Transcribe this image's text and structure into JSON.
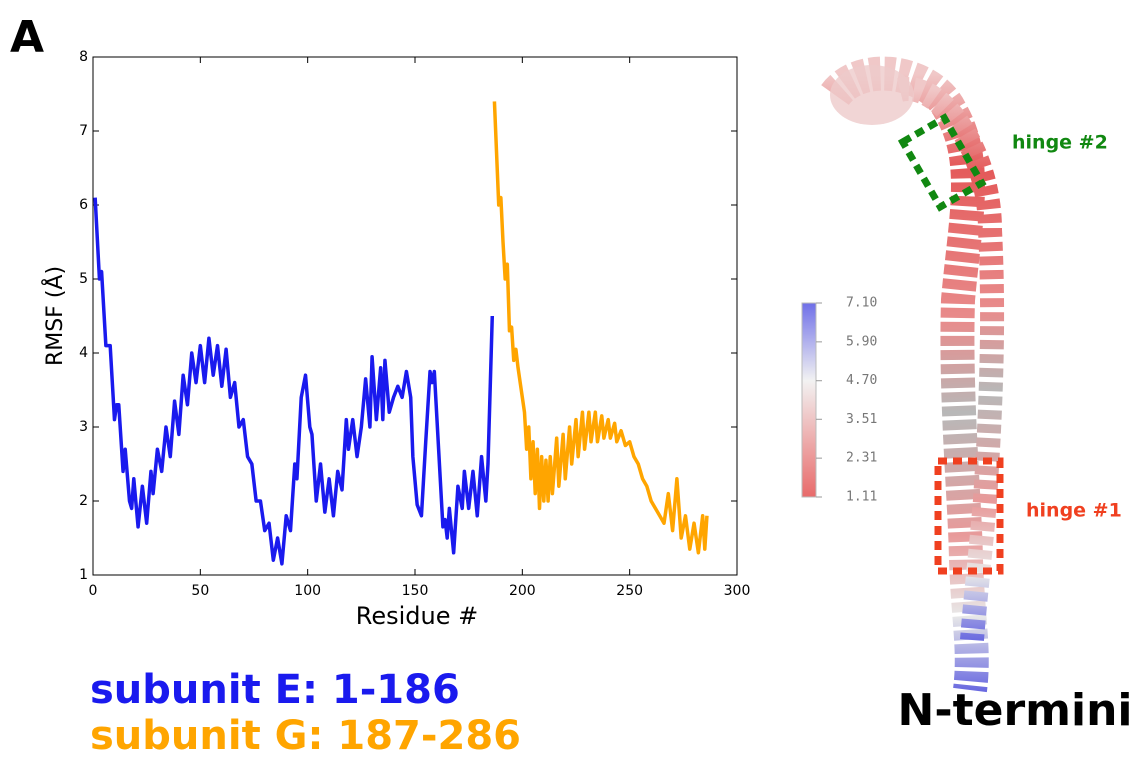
{
  "panel_label": "A",
  "chart_data": {
    "type": "line",
    "xlabel": "Residue #",
    "ylabel": "RMSF (Å)",
    "xlim": [
      0,
      300
    ],
    "ylim": [
      1,
      8
    ],
    "xticks": [
      0,
      50,
      100,
      150,
      200,
      250,
      300
    ],
    "yticks": [
      1,
      2,
      3,
      4,
      5,
      6,
      7,
      8
    ],
    "series": [
      {
        "name": "subunit E: 1-186",
        "color": "#1a1aee",
        "x": [
          1,
          3,
          4,
          6,
          8,
          10,
          11,
          12,
          14,
          15,
          17,
          18,
          19,
          21,
          23,
          25,
          27,
          28,
          30,
          32,
          34,
          36,
          38,
          40,
          42,
          44,
          46,
          48,
          50,
          52,
          54,
          56,
          58,
          60,
          62,
          64,
          66,
          68,
          70,
          72,
          74,
          76,
          78,
          80,
          82,
          84,
          86,
          88,
          90,
          92,
          94,
          95,
          97,
          99,
          101,
          102,
          104,
          106,
          108,
          110,
          112,
          114,
          116,
          118,
          119,
          121,
          123,
          125,
          127,
          129,
          130,
          132,
          134,
          135,
          136,
          138,
          140,
          142,
          144,
          146,
          148,
          149,
          151,
          153,
          155,
          157,
          158,
          159,
          161,
          163,
          164,
          165,
          166,
          168,
          170,
          172,
          173,
          175,
          177,
          179,
          181,
          183,
          184,
          186
        ],
        "values": [
          6.1,
          5.0,
          5.1,
          4.1,
          4.1,
          3.1,
          3.3,
          3.3,
          2.4,
          2.7,
          2.0,
          1.9,
          2.3,
          1.65,
          2.2,
          1.7,
          2.4,
          2.1,
          2.7,
          2.4,
          3.0,
          2.6,
          3.35,
          2.9,
          3.7,
          3.3,
          4.0,
          3.6,
          4.1,
          3.6,
          4.2,
          3.7,
          4.1,
          3.55,
          4.05,
          3.4,
          3.6,
          3.0,
          3.1,
          2.6,
          2.5,
          2.0,
          2.0,
          1.6,
          1.7,
          1.2,
          1.5,
          1.15,
          1.8,
          1.6,
          2.5,
          2.3,
          3.4,
          3.7,
          3.0,
          2.9,
          2.0,
          2.5,
          1.85,
          2.3,
          1.8,
          2.4,
          2.15,
          3.1,
          2.7,
          3.1,
          2.6,
          3.0,
          3.65,
          3.0,
          3.95,
          3.1,
          3.8,
          3.1,
          3.9,
          3.2,
          3.4,
          3.55,
          3.4,
          3.75,
          3.4,
          2.6,
          1.95,
          1.8,
          2.8,
          3.75,
          3.6,
          3.75,
          2.7,
          1.65,
          1.75,
          1.5,
          1.9,
          1.3,
          2.2,
          1.9,
          2.4,
          1.9,
          2.4,
          1.8,
          2.6,
          2.0,
          2.5,
          4.5
        ]
      },
      {
        "name": "subunit G: 187-286",
        "color": "#ffa500",
        "x": [
          187,
          189,
          190,
          191,
          192,
          193,
          194,
          195,
          196,
          197,
          198,
          199,
          200,
          201,
          202,
          203,
          204,
          205,
          206,
          207,
          208,
          209,
          210,
          211,
          212,
          213,
          214,
          216,
          217,
          219,
          220,
          222,
          223,
          225,
          226,
          228,
          229,
          231,
          232,
          234,
          235,
          237,
          238,
          240,
          241,
          243,
          244,
          246,
          248,
          250,
          252,
          254,
          256,
          258,
          260,
          262,
          264,
          266,
          268,
          270,
          272,
          274,
          276,
          278,
          280,
          282,
          284,
          285,
          286
        ],
        "values": [
          7.4,
          6.0,
          6.1,
          5.5,
          5.0,
          5.2,
          4.3,
          4.35,
          3.9,
          4.05,
          3.8,
          3.6,
          3.4,
          3.2,
          2.7,
          3.0,
          2.3,
          2.8,
          2.1,
          2.7,
          1.9,
          2.6,
          2.0,
          2.55,
          2.0,
          2.6,
          2.1,
          2.85,
          2.2,
          2.9,
          2.3,
          3.0,
          2.5,
          3.1,
          2.6,
          3.2,
          2.7,
          3.2,
          2.8,
          3.2,
          2.8,
          3.15,
          2.85,
          3.1,
          2.85,
          3.05,
          2.8,
          2.95,
          2.75,
          2.8,
          2.6,
          2.5,
          2.3,
          2.2,
          2.0,
          1.9,
          1.8,
          1.7,
          2.1,
          1.6,
          2.3,
          1.5,
          1.8,
          1.35,
          1.7,
          1.3,
          1.8,
          1.35,
          1.8
        ]
      }
    ]
  },
  "structure": {
    "colorbar_ticks": [
      {
        "value": 7.1,
        "label": "7.10"
      },
      {
        "value": 5.9,
        "label": "5.90"
      },
      {
        "value": 4.7,
        "label": "4.70"
      },
      {
        "value": 3.51,
        "label": "3.51"
      },
      {
        "value": 2.31,
        "label": "2.31"
      },
      {
        "value": 1.11,
        "label": "1.11"
      }
    ],
    "hinge_2": "hinge #2",
    "hinge_1": "hinge #1",
    "terminus_label": "N-termini"
  }
}
